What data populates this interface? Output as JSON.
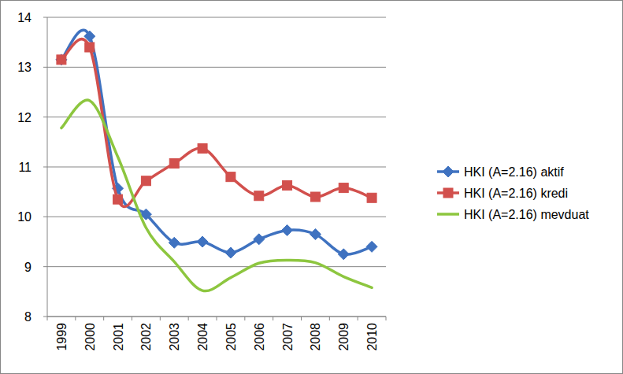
{
  "chart_data": {
    "type": "line",
    "categories": [
      "1999",
      "2000",
      "2001",
      "2002",
      "2003",
      "2004",
      "2005",
      "2006",
      "2007",
      "2008",
      "2009",
      "2010"
    ],
    "series": [
      {
        "name": "HKI (A=2.16) aktif",
        "color": "#3F72C0",
        "marker": "diamond",
        "line_style": "smooth",
        "values": [
          13.15,
          13.62,
          10.57,
          10.05,
          9.48,
          9.5,
          9.28,
          9.55,
          9.73,
          9.65,
          9.25,
          9.4
        ]
      },
      {
        "name": "HKI (A=2.16) kredi",
        "color": "#D2504D",
        "marker": "square",
        "line_style": "smooth",
        "values": [
          13.15,
          13.4,
          10.35,
          10.72,
          11.07,
          11.37,
          10.8,
          10.42,
          10.63,
          10.4,
          10.58,
          10.38
        ]
      },
      {
        "name": "HKI (A=2.16) mevduat",
        "color": "#8DC63F",
        "marker": "none",
        "line_style": "smooth",
        "values": [
          11.78,
          12.33,
          11.2,
          9.78,
          9.1,
          8.52,
          8.78,
          9.07,
          9.13,
          9.08,
          8.8,
          8.58
        ]
      }
    ],
    "ylim": [
      8,
      14
    ],
    "yticks": [
      8,
      9,
      10,
      11,
      12,
      13,
      14
    ],
    "grid": true,
    "legend": "right"
  }
}
